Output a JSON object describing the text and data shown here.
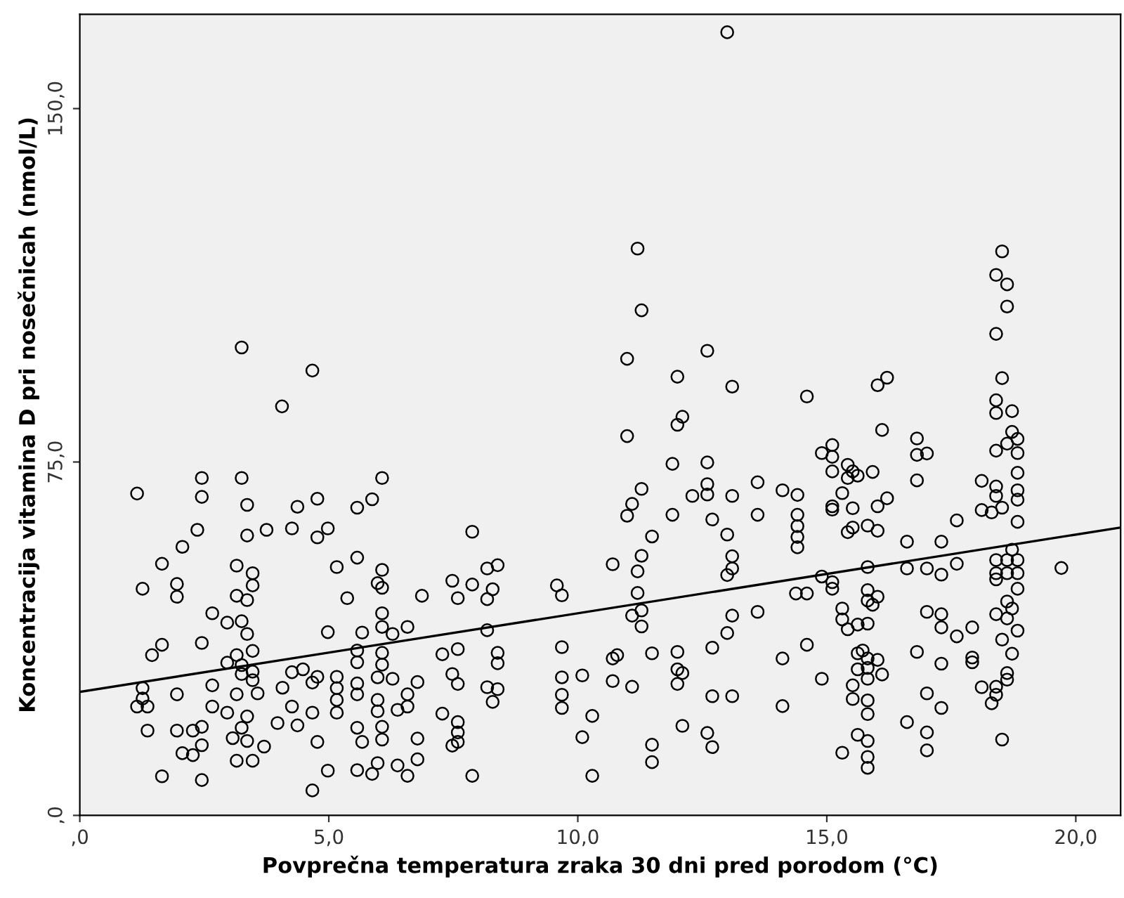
{
  "chart_data": {
    "type": "scatter",
    "xlabel": "Povprečna temperatura zraka 30 dni pred porodom (°C)",
    "ylabel": "Koncentracija vitamina D pri nosečnicah (nmol/L)",
    "xlim": [
      0,
      20.9
    ],
    "ylim": [
      0,
      170
    ],
    "xticks": [
      {
        "value": 0,
        "label": ",0"
      },
      {
        "value": 5,
        "label": "5,0"
      },
      {
        "value": 10,
        "label": "10,0"
      },
      {
        "value": 15,
        "label": "15,0"
      },
      {
        "value": 20,
        "label": "20,0"
      }
    ],
    "yticks": [
      {
        "value": 0,
        "label": ",0"
      },
      {
        "value": 75,
        "label": "75,0"
      },
      {
        "value": 150,
        "label": "150,0"
      }
    ],
    "grid": false,
    "legend": false,
    "series": [
      {
        "marker": "circle",
        "color": "#000000",
        "x": [
          3.25,
          4.67,
          4.06,
          2.45,
          3.25,
          1.15,
          2.45,
          3.36,
          4.37,
          4.77,
          2.36,
          3.36,
          3.75,
          4.26,
          4.77,
          4.98,
          2.06,
          1.65,
          3.15,
          3.47,
          5.16,
          1.26,
          1.95,
          1.95,
          3.47,
          3.15,
          3.36,
          5.37,
          2.66,
          2.96,
          3.25,
          3.36,
          4.98,
          1.65,
          1.45,
          2.45,
          3.47,
          3.15,
          2.96,
          3.25,
          3.47,
          3.25,
          3.47,
          4.26,
          4.48,
          4.77,
          4.67,
          1.26,
          1.26,
          1.15,
          1.36,
          1.95,
          2.66,
          2.66,
          3.15,
          3.57,
          4.07,
          5.16,
          5.16,
          5.16,
          5.16,
          4.26,
          4.67,
          2.96,
          3.36,
          3.25,
          3.97,
          4.37,
          1.36,
          1.95,
          2.27,
          2.45,
          3.07,
          3.36,
          2.45,
          2.06,
          2.27,
          3.7,
          4.77,
          3.15,
          3.47,
          4.98,
          1.65,
          2.45,
          4.67,
          6.07,
          5.87,
          5.57,
          7.88,
          5.57,
          6.07,
          5.98,
          6.07,
          6.87,
          7.48,
          7.59,
          7.88,
          8.18,
          8.39,
          8.29,
          8.18,
          9.58,
          9.68,
          10.7,
          6.07,
          6.07,
          5.67,
          6.28,
          6.58,
          8.18,
          5.57,
          6.07,
          5.57,
          6.07,
          7.28,
          7.59,
          8.39,
          8.39,
          9.68,
          7.48,
          7.59,
          8.18,
          8.39,
          8.29,
          9.68,
          10.09,
          10.7,
          10.79,
          10.7,
          5.57,
          5.57,
          5.98,
          6.28,
          6.78,
          5.98,
          5.98,
          6.58,
          6.38,
          6.58,
          7.28,
          9.68,
          9.68,
          5.57,
          5.67,
          6.07,
          6.07,
          6.78,
          7.59,
          7.59,
          7.59,
          7.48,
          10.09,
          10.29,
          5.57,
          5.87,
          5.98,
          6.38,
          6.58,
          6.78,
          7.88,
          10.29,
          13.0,
          11.2,
          11.28,
          12.6,
          10.99,
          12.0,
          13.1,
          14.6,
          10.99,
          12.1,
          12.0,
          11.9,
          12.6,
          12.6,
          12.6,
          12.3,
          13.1,
          13.61,
          14.11,
          14.41,
          14.41,
          14.41,
          14.41,
          14.41,
          11.28,
          11.09,
          10.99,
          11.9,
          12.7,
          13.61,
          13.0,
          11.49,
          11.28,
          11.2,
          13.1,
          13.1,
          13.0,
          11.2,
          11.28,
          11.09,
          11.28,
          13.1,
          13.61,
          13.0,
          14.38,
          14.6,
          11.49,
          12.0,
          12.0,
          12.1,
          12.0,
          12.7,
          11.09,
          14.11,
          14.6,
          12.7,
          13.1,
          14.11,
          12.1,
          12.6,
          12.7,
          11.49,
          11.49,
          15.11,
          14.9,
          15.11,
          15.11,
          15.42,
          15.52,
          15.42,
          15.62,
          15.92,
          16.02,
          16.21,
          16.11,
          15.31,
          15.11,
          15.11,
          15.52,
          16.02,
          16.21,
          15.42,
          15.52,
          15.82,
          16.02,
          15.82,
          14.9,
          15.11,
          15.11,
          15.82,
          15.82,
          16.02,
          15.92,
          15.31,
          15.31,
          15.42,
          15.62,
          15.82,
          15.62,
          15.72,
          15.82,
          16.02,
          15.62,
          15.82,
          15.82,
          16.11,
          14.9,
          15.52,
          15.52,
          15.82,
          15.82,
          15.62,
          15.82,
          15.82,
          15.82,
          15.31,
          18.52,
          18.4,
          18.62,
          18.62,
          18.4,
          18.52,
          18.4,
          18.4,
          18.72,
          18.72,
          18.62,
          18.83,
          18.83,
          18.4,
          18.83,
          18.83,
          18.83,
          18.83,
          18.4,
          18.4,
          18.11,
          18.11,
          18.31,
          18.52,
          18.72,
          18.4,
          18.62,
          18.83,
          18.4,
          18.62,
          18.83,
          18.4,
          18.83,
          18.62,
          18.72,
          18.4,
          18.62,
          18.83,
          18.52,
          18.72,
          18.62,
          18.62,
          18.4,
          18.11,
          18.4,
          18.31,
          18.52,
          19.71,
          16.81,
          16.81,
          17.01,
          16.81,
          17.61,
          16.61,
          17.3,
          16.61,
          17.01,
          17.3,
          17.61,
          17.01,
          17.3,
          17.3,
          17.61,
          17.92,
          17.92,
          17.92,
          16.81,
          17.3,
          17.01,
          17.3,
          16.61,
          17.01,
          17.01
        ],
        "values": [
          99.3,
          94.4,
          86.8,
          71.6,
          71.6,
          68.3,
          67.6,
          65.9,
          65.5,
          67.2,
          60.6,
          59.4,
          60.6,
          60.9,
          59.0,
          60.9,
          57.0,
          53.4,
          53.0,
          51.4,
          52.7,
          48.1,
          49.1,
          46.4,
          48.8,
          46.6,
          45.7,
          46.1,
          42.9,
          40.9,
          41.2,
          38.5,
          38.9,
          36.2,
          34.0,
          36.6,
          34.9,
          34.0,
          32.4,
          31.9,
          30.5,
          30.0,
          28.7,
          30.4,
          31.0,
          29.4,
          28.2,
          27.0,
          24.8,
          23.1,
          23.1,
          25.7,
          27.6,
          23.1,
          25.7,
          25.9,
          27.1,
          29.4,
          27.0,
          24.5,
          21.8,
          23.1,
          21.8,
          21.8,
          21.0,
          18.6,
          19.6,
          19.1,
          18.0,
          18.0,
          18.0,
          18.8,
          16.4,
          15.8,
          14.9,
          13.2,
          12.8,
          14.6,
          15.6,
          11.6,
          11.6,
          9.5,
          8.3,
          7.5,
          5.3,
          71.6,
          67.1,
          65.3,
          60.2,
          54.7,
          52.1,
          49.3,
          48.3,
          46.6,
          49.8,
          46.1,
          49.0,
          52.4,
          53.1,
          48.0,
          45.9,
          48.8,
          46.7,
          53.3,
          42.9,
          40.0,
          38.8,
          38.5,
          40.0,
          39.3,
          35.0,
          34.5,
          32.5,
          32.0,
          34.2,
          35.3,
          34.5,
          32.3,
          35.7,
          30.0,
          27.9,
          27.2,
          26.8,
          24.1,
          29.3,
          29.7,
          33.3,
          34.0,
          28.5,
          28.0,
          25.7,
          29.3,
          29.0,
          28.3,
          24.5,
          22.1,
          25.7,
          22.4,
          23.1,
          21.6,
          25.6,
          22.8,
          18.6,
          15.6,
          18.8,
          16.1,
          16.3,
          19.8,
          17.6,
          15.6,
          14.8,
          16.6,
          21.1,
          9.6,
          8.8,
          11.1,
          10.6,
          8.4,
          11.9,
          8.4,
          8.4,
          166.2,
          120.3,
          107.2,
          98.6,
          96.9,
          93.1,
          91.0,
          88.9,
          80.5,
          84.6,
          82.9,
          74.6,
          74.9,
          70.3,
          68.1,
          67.8,
          67.8,
          70.7,
          69.0,
          68.0,
          63.8,
          61.4,
          59.1,
          56.9,
          69.3,
          66.1,
          63.6,
          63.8,
          62.8,
          63.8,
          59.6,
          59.2,
          55.1,
          51.8,
          55.0,
          52.4,
          51.0,
          47.2,
          43.5,
          42.4,
          40.1,
          42.4,
          43.2,
          38.7,
          47.1,
          47.1,
          34.4,
          34.7,
          31.0,
          30.2,
          27.9,
          35.6,
          27.3,
          33.3,
          36.2,
          25.3,
          25.3,
          23.2,
          19.0,
          17.5,
          14.5,
          15.0,
          11.3,
          78.6,
          76.9,
          76.1,
          73.0,
          74.4,
          73.0,
          71.6,
          72.1,
          72.9,
          91.3,
          92.9,
          81.8,
          68.4,
          65.6,
          64.9,
          65.2,
          65.6,
          67.3,
          60.1,
          61.1,
          61.5,
          60.4,
          52.7,
          50.7,
          49.5,
          48.1,
          47.8,
          45.6,
          46.4,
          44.7,
          43.9,
          41.6,
          39.5,
          40.5,
          40.7,
          34.4,
          35.0,
          33.3,
          33.0,
          31.0,
          31.3,
          29.0,
          29.9,
          29.0,
          27.6,
          24.7,
          24.4,
          21.5,
          17.1,
          15.8,
          12.4,
          10.1,
          13.3,
          119.7,
          114.7,
          112.7,
          108.0,
          102.2,
          92.8,
          88.1,
          85.4,
          85.8,
          81.4,
          78.9,
          79.9,
          76.9,
          77.4,
          72.7,
          69.0,
          67.0,
          62.3,
          69.8,
          67.8,
          71.0,
          64.8,
          64.3,
          65.3,
          56.4,
          54.2,
          54.2,
          54.2,
          51.4,
          51.4,
          51.4,
          50.1,
          48.1,
          45.4,
          43.9,
          42.7,
          41.8,
          39.2,
          37.3,
          34.3,
          30.2,
          28.8,
          27.3,
          27.2,
          25.6,
          23.8,
          16.1,
          52.5,
          80.0,
          76.5,
          76.8,
          71.1,
          62.6,
          58.1,
          58.1,
          52.4,
          52.4,
          51.1,
          53.4,
          43.2,
          42.7,
          39.9,
          38.0,
          39.9,
          33.5,
          32.5,
          34.7,
          32.2,
          25.9,
          22.8,
          19.8,
          17.6,
          13.8
        ]
      },
      {
        "type": "line",
        "marker": "none",
        "line_style": "solid",
        "color": "#000000",
        "x": [
          0,
          20.9
        ],
        "values": [
          26.2,
          61.1
        ]
      }
    ]
  }
}
